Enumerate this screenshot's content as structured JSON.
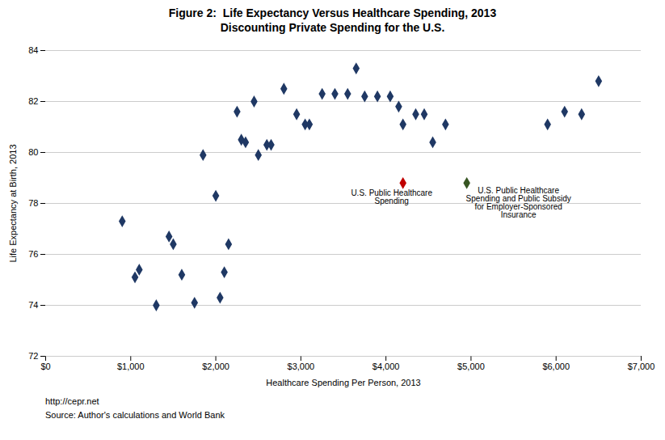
{
  "chart_data": {
    "type": "scatter",
    "title": "Figure 2:  Life Expectancy Versus Healthcare Spending, 2013",
    "subtitle": "Discounting Private Spending for the U.S.",
    "xlabel": "Healthcare Spending Per Person, 2013",
    "ylabel": "Life Expectancy at Birth, 2013",
    "footnotes": [
      "http://cepr.net",
      "Source: Author's calculations and World Bank"
    ],
    "xlim": [
      0,
      7000
    ],
    "ylim": [
      72,
      84
    ],
    "xticks": [
      {
        "value": 0,
        "label": "$0"
      },
      {
        "value": 1000,
        "label": "$1,000"
      },
      {
        "value": 2000,
        "label": "$2,000"
      },
      {
        "value": 3000,
        "label": "$3,000"
      },
      {
        "value": 4000,
        "label": "$4,000"
      },
      {
        "value": 5000,
        "label": "$5,000"
      },
      {
        "value": 6000,
        "label": "$6,000"
      },
      {
        "value": 7000,
        "label": "$7,000"
      }
    ],
    "yticks": [
      72,
      74,
      76,
      78,
      80,
      82,
      84
    ],
    "grid": "y",
    "series": [
      {
        "color": "#1F3864",
        "marker": "diamond",
        "x": [
          900,
          1050,
          1100,
          1300,
          1450,
          1500,
          1600,
          1750,
          1850,
          2000,
          2050,
          2100,
          2150,
          2250,
          2300,
          2350,
          2450,
          2500,
          2600,
          2650,
          2800,
          2950,
          3050,
          3100,
          3250,
          3400,
          3550,
          3650,
          3750,
          3900,
          4050,
          4150,
          4200,
          4350,
          4450,
          4550,
          4700,
          5900,
          6100,
          6300,
          6500
        ],
        "values": [
          77.3,
          75.1,
          75.4,
          74.0,
          76.7,
          76.4,
          75.2,
          74.1,
          79.9,
          78.3,
          74.3,
          75.3,
          76.4,
          81.6,
          80.5,
          80.4,
          82.0,
          79.9,
          80.3,
          80.3,
          82.5,
          81.5,
          81.1,
          81.1,
          82.3,
          82.3,
          82.3,
          83.3,
          82.2,
          82.2,
          82.2,
          81.8,
          81.1,
          81.5,
          81.5,
          80.4,
          81.1,
          81.1,
          81.6,
          81.5,
          82.8
        ]
      },
      {
        "color": "#C00000",
        "marker": "diamond",
        "x": [
          4200
        ],
        "values": [
          78.8
        ]
      },
      {
        "color": "#375623",
        "marker": "diamond",
        "x": [
          4950
        ],
        "values": [
          78.8
        ]
      }
    ],
    "annotations": [
      {
        "text": "U.S. Public Healthcare\nSpending",
        "x": 4200,
        "y": 78.8
      },
      {
        "text": "U.S. Public Healthcare\nSpending and Public Subsidy\nfor Employer-Sponsored\nInsurance",
        "x": 4950,
        "y": 78.8
      }
    ]
  }
}
